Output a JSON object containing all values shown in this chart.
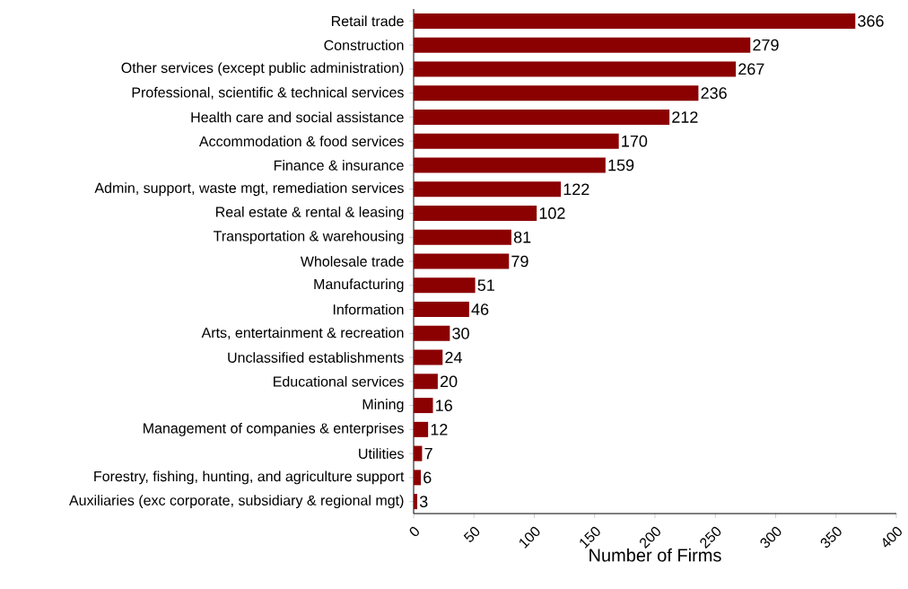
{
  "chart_data": {
    "type": "bar",
    "orientation": "horizontal",
    "xlabel": "Number of Firms",
    "categories": [
      "Retail trade",
      "Construction",
      "Other services (except public administration)",
      "Professional, scientific & technical services",
      "Health care and social assistance",
      "Accommodation & food services",
      "Finance & insurance",
      "Admin, support, waste mgt, remediation services",
      "Real estate & rental & leasing",
      "Transportation & warehousing",
      "Wholesale trade",
      "Manufacturing",
      "Information",
      "Arts, entertainment & recreation",
      "Unclassified establishments",
      "Educational services",
      "Mining",
      "Management of companies & enterprises",
      "Utilities",
      "Forestry, fishing, hunting, and agriculture support",
      "Auxiliaries (exc corporate, subsidiary & regional mgt)"
    ],
    "values": [
      366,
      279,
      267,
      236,
      212,
      170,
      159,
      122,
      102,
      81,
      79,
      51,
      46,
      30,
      24,
      20,
      16,
      12,
      7,
      6,
      3
    ],
    "color": "#8b0000",
    "xlim": [
      0,
      400
    ],
    "xticks": [
      0,
      50,
      100,
      150,
      200,
      250,
      300,
      350,
      400
    ],
    "data_labels": true
  }
}
